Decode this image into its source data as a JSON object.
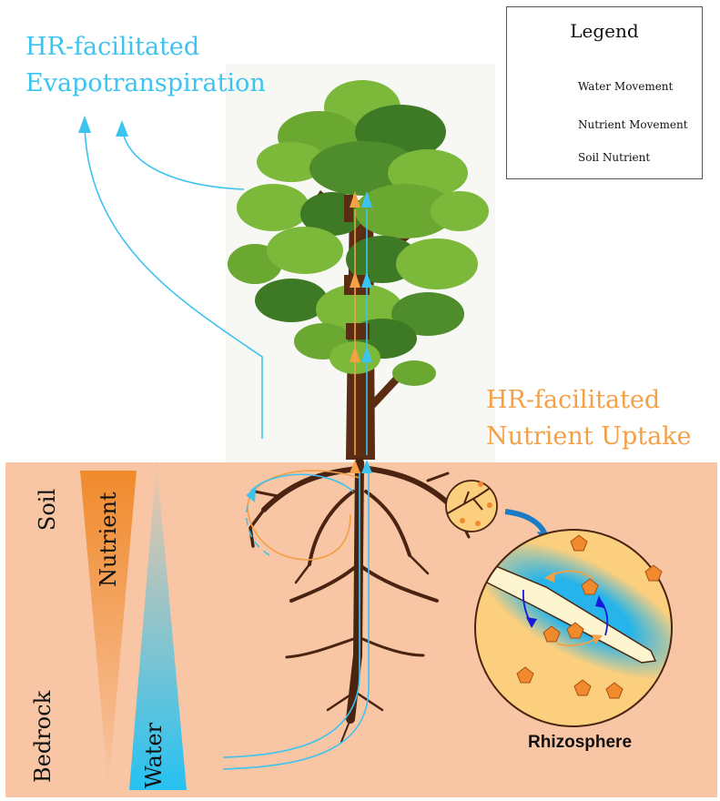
{
  "titles": {
    "evap_line1": "HR-facilitated",
    "evap_line2": "Evapotranspiration",
    "nutrient_line1": "HR-facilitated",
    "nutrient_line2": "Nutrient Uptake"
  },
  "legend": {
    "title": "Legend",
    "items": [
      {
        "label": "Water Movement",
        "icon": "double-blue-arrow-icon"
      },
      {
        "label": "Nutrient Movement",
        "icon": "orange-arrow-icon"
      },
      {
        "label": "Soil Nutrient",
        "icon": "orange-pentagon-icon"
      }
    ]
  },
  "side_labels": {
    "soil": "Soil",
    "bedrock": "Bedrock",
    "nutrient_gradient": "Nutrient",
    "water_gradient": "Water"
  },
  "inset": {
    "caption": "Rhizosphere"
  },
  "colors": {
    "soil": "#f8c6a5",
    "water": "#3cc3f0",
    "water_dark": "#1818d8",
    "nutrient": "#f3a047",
    "trunk": "#4a2410",
    "leaf_light": "#7cb83a",
    "leaf_dark": "#3e7a26"
  }
}
